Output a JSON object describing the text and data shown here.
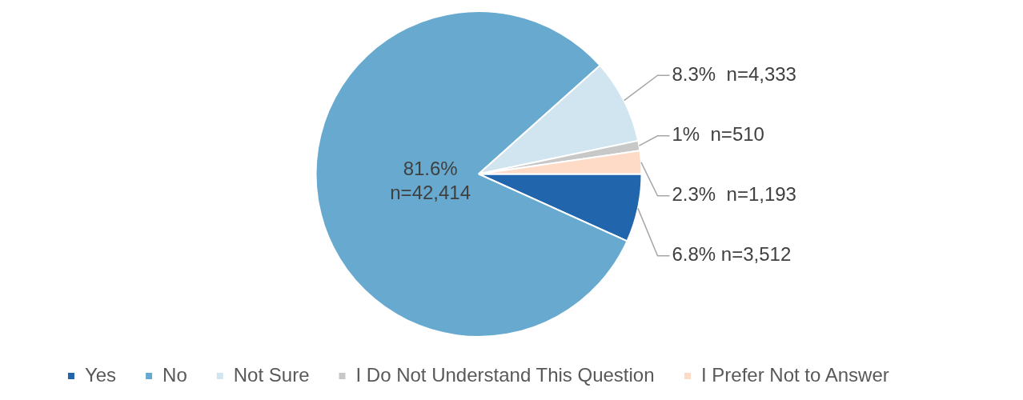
{
  "chart_data": {
    "type": "pie",
    "categories": [
      "Yes",
      "No",
      "Not Sure",
      "I Do Not Understand This Question",
      "I Prefer Not to Answer"
    ],
    "values": [
      3512,
      42414,
      4333,
      510,
      1193
    ],
    "colors": [
      "#2166ac",
      "#67a9cf",
      "#d1e5f0",
      "#c8c8c8",
      "#fddbc7"
    ],
    "value_labels": [
      "6.8% n=3,512",
      "81.6% n=42,414",
      "8.3%  n=4,333",
      "1%  n=510",
      "2.3%  n=1,193"
    ],
    "legend": "bottom"
  }
}
